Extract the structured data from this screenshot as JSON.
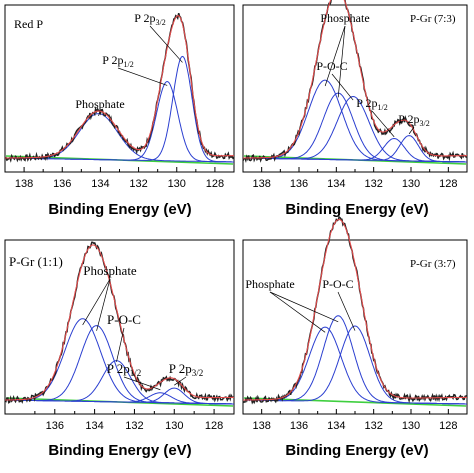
{
  "colors": {
    "data": "#222222",
    "envelope": "#e24a4a",
    "component": "#2b3fd0",
    "background_line": "#3fcf3f",
    "frame": "#000000"
  },
  "chart_data": [
    {
      "type": "line",
      "title": "Red P",
      "xlabel": "Binding Energy (eV)",
      "xlim": [
        139,
        127
      ],
      "xticks": [
        138,
        136,
        134,
        132,
        130,
        128
      ],
      "tick_labels": [
        "138",
        "136",
        "134",
        "132",
        "130",
        "128"
      ],
      "components": [
        {
          "name": "Phosphate",
          "center": 134.1,
          "height": 0.29,
          "width": 1.0
        },
        {
          "name": "P 2p1/2",
          "center": 130.5,
          "height": 0.5,
          "width": 0.55
        },
        {
          "name": "P 2p3/2",
          "center": 129.7,
          "height": 0.66,
          "width": 0.5
        }
      ],
      "annotations": [
        {
          "text": "Phosphate",
          "target": 0
        },
        {
          "text": "P 2p",
          "sub": "1/2",
          "target": 1
        },
        {
          "text": "P 2p",
          "sub": "3/2",
          "target": 2
        }
      ]
    },
    {
      "type": "line",
      "title": "P-Gr (7:3)",
      "xlabel": "Binding Energy (eV)",
      "xlim": [
        139,
        127
      ],
      "xticks": [
        138,
        136,
        134,
        132,
        130,
        128
      ],
      "tick_labels": [
        "138",
        "136",
        "134",
        "132",
        "130",
        "128"
      ],
      "components": [
        {
          "name": "Phosphate",
          "center": 134.6,
          "height": 0.5,
          "width": 0.9
        },
        {
          "name": "Phosphate",
          "center": 133.9,
          "height": 0.42,
          "width": 0.8
        },
        {
          "name": "P-O-C",
          "center": 133.1,
          "height": 0.4,
          "width": 0.85
        },
        {
          "name": "P 2p1/2",
          "center": 130.9,
          "height": 0.14,
          "width": 0.55
        },
        {
          "name": "P 2p3/2",
          "center": 130.1,
          "height": 0.16,
          "width": 0.5
        }
      ],
      "annotations": [
        {
          "text": "Phosphate",
          "target": 0
        },
        {
          "text": "P-O-C",
          "target": 2
        },
        {
          "text": "P 2p",
          "sub": "1/2",
          "target": 3
        },
        {
          "text": "P 2p",
          "sub": "3/2",
          "target": 4
        }
      ]
    },
    {
      "type": "line",
      "title": "P-Gr (1:1)",
      "xlabel": "Binding Energy (eV)",
      "xlim": [
        138.5,
        127
      ],
      "xticks": [
        136,
        134,
        132,
        130,
        128
      ],
      "tick_labels": [
        "136",
        "134",
        "132",
        "130",
        "128"
      ],
      "components": [
        {
          "name": "Phosphate",
          "center": 134.6,
          "height": 0.5,
          "width": 0.9
        },
        {
          "name": "Phosphate",
          "center": 133.9,
          "height": 0.46,
          "width": 0.8
        },
        {
          "name": "P-O-C",
          "center": 132.9,
          "height": 0.25,
          "width": 0.7
        },
        {
          "name": "P 2p1/2",
          "center": 130.7,
          "height": 0.06,
          "width": 0.55
        },
        {
          "name": "P 2p3/2",
          "center": 130.0,
          "height": 0.09,
          "width": 0.5
        }
      ],
      "annotations": [
        {
          "text": "Phosphate",
          "target": 0
        },
        {
          "text": "P-O-C",
          "target": 2
        },
        {
          "text": "P 2p",
          "sub": "1/2",
          "target": 3
        },
        {
          "text": "P 2p",
          "sub": "3/2",
          "target": 4
        }
      ]
    },
    {
      "type": "line",
      "title": "P-Gr (3:7)",
      "xlabel": "Binding Energy (eV)",
      "xlim": [
        139,
        127
      ],
      "xticks": [
        138,
        136,
        134,
        132,
        130,
        128
      ],
      "tick_labels": [
        "138",
        "136",
        "134",
        "132",
        "130",
        "128"
      ],
      "components": [
        {
          "name": "Phosphate",
          "center": 134.6,
          "height": 0.45,
          "width": 0.85
        },
        {
          "name": "Phosphate",
          "center": 133.9,
          "height": 0.52,
          "width": 0.8
        },
        {
          "name": "P-O-C",
          "center": 133.0,
          "height": 0.46,
          "width": 0.8
        }
      ],
      "annotations": [
        {
          "text": "Phosphate",
          "target": 0
        },
        {
          "text": "P-O-C",
          "target": 2
        }
      ]
    }
  ]
}
